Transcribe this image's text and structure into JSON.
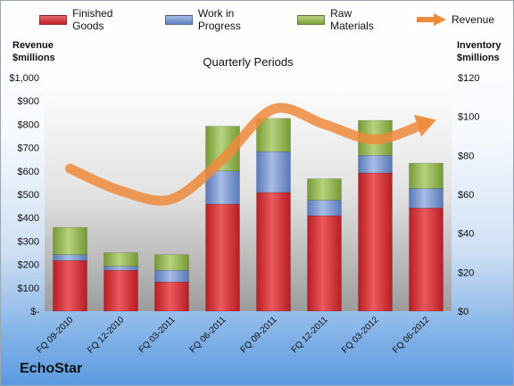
{
  "legend": {
    "finished_goods": "Finished Goods",
    "work_in_progress": "Work in Progress",
    "raw_materials": "Raw Materials",
    "revenue": "Revenue"
  },
  "left_axis_title": [
    "Revenue",
    "$millions"
  ],
  "right_axis_title": [
    "Inventory",
    "$millions"
  ],
  "company": "EchoStar",
  "colors": {
    "finished_goods": "#d42a2f",
    "work_in_progress": "#6f8fcf",
    "raw_materials": "#8fb24a",
    "revenue": "#ee8a3c"
  },
  "chart_data": {
    "type": "bar",
    "title": "Quarterly Periods",
    "categories": [
      "FQ 09-2010",
      "FQ 12-2010",
      "FQ 03-2011",
      "FQ 06-2011",
      "FQ 09-2011",
      "FQ 12-2011",
      "FQ 03-2012",
      "FQ 06-2012"
    ],
    "series": [
      {
        "name": "Finished Goods",
        "axis": "right",
        "values": [
          26,
          21,
          15,
          55,
          61,
          49,
          71,
          53
        ]
      },
      {
        "name": "Work in Progress",
        "axis": "right",
        "values": [
          3,
          2,
          6,
          17,
          21,
          8,
          9,
          10
        ]
      },
      {
        "name": "Raw Materials",
        "axis": "right",
        "values": [
          14,
          7,
          8,
          23,
          17,
          11,
          18,
          13
        ]
      }
    ],
    "line_series": {
      "name": "Revenue",
      "axis": "left",
      "values": [
        610,
        515,
        480,
        650,
        865,
        800,
        735,
        805
      ]
    },
    "stacked": true,
    "left_axis": {
      "ylim": [
        0,
        1000
      ],
      "ticks": [
        "$-",
        "$100",
        "$200",
        "$300",
        "$400",
        "$500",
        "$600",
        "$700",
        "$800",
        "$900",
        "$1,000"
      ]
    },
    "right_axis": {
      "ylim": [
        0,
        120
      ],
      "ticks": [
        "$0",
        "$20",
        "$40",
        "$60",
        "$80",
        "$100",
        "$120"
      ]
    },
    "legend_position": "top",
    "grid": false
  }
}
